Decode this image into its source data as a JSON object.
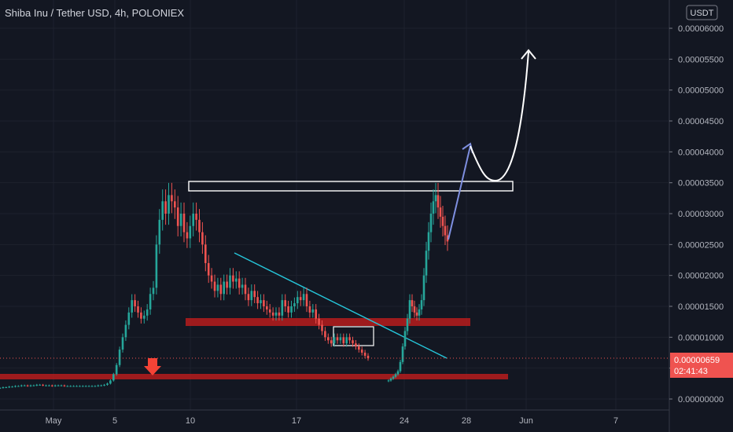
{
  "chart_data": {
    "type": "candlestick",
    "title": "Shiba Inu / Tether USD, 4h, POLONIEX",
    "currency": "USDT",
    "y_ticks": [
      "0.00006000",
      "0.00005500",
      "0.00005000",
      "0.00004500",
      "0.00004000",
      "0.00003500",
      "0.00003000",
      "0.00002500",
      "0.00002000",
      "0.00001500",
      "0.00001000",
      "0.00000500",
      "0.00000000"
    ],
    "ylim": [
      0,
      6.2e-05
    ],
    "x_ticks": [
      "May",
      "5",
      "10",
      "17",
      "24",
      "28",
      "Jun",
      "7"
    ],
    "last_price": "0.00000659",
    "countdown": "02:41:43",
    "colors": {
      "up": "#26a69a",
      "down": "#ef5350",
      "trend": "#26c6da",
      "zone": "#b71c1c",
      "arrow": "#7e8fe0"
    },
    "series": [
      {
        "name": "",
        "values": [
          1.8e-06,
          1.9e-06,
          1.9e-06,
          2e-06,
          2e-06,
          2.1e-06,
          2.1e-06,
          2.2e-06,
          2.2e-06,
          2.1e-06,
          2.2e-06,
          2.2e-06,
          2.3e-06,
          2.3e-06,
          2.2e-06,
          2.2e-06,
          2.2e-06,
          2.1e-06,
          2.2e-06,
          2.2e-06,
          2.2e-06,
          2.1e-06,
          2.1e-06,
          2.1e-06,
          2.1e-06,
          2.1e-06,
          2.1e-06,
          2.1e-06,
          2.1e-06,
          2.1e-06,
          2.1e-06,
          2.1e-06,
          2.2e-06,
          2.2e-06,
          2.3e-06,
          2.5e-06,
          3e-06,
          4e-06,
          5.5e-06,
          8e-06,
          1e-05,
          1.2e-05,
          1.4e-05,
          1.6e-05,
          1.5e-05,
          1.4e-05,
          1.3e-05,
          1.35e-05,
          1.45e-05,
          1.7e-05,
          1.8e-05,
          2.5e-05,
          2.9e-05,
          3.2e-05,
          3e-05,
          3.3e-05,
          3.2e-05,
          3.1e-05,
          2.8e-05,
          3e-05,
          2.7e-05,
          2.6e-05,
          2.8e-05,
          3e-05,
          2.9e-05,
          2.7e-05,
          2.5e-05,
          2.2e-05,
          2e-05,
          1.9e-05,
          1.75e-05,
          1.85e-05,
          1.7e-05,
          1.9e-05,
          1.8e-05,
          2e-05,
          1.9e-05,
          1.95e-05,
          1.8e-05,
          1.85e-05,
          1.7e-05,
          1.6e-05,
          1.75e-05,
          1.65e-05,
          1.55e-05,
          1.6e-05,
          1.5e-05,
          1.45e-05,
          1.4e-05,
          1.35e-05,
          1.4e-05,
          1.35e-05,
          1.6e-05,
          1.5e-05,
          1.4e-05,
          1.5e-05,
          1.55e-05,
          1.65e-05,
          1.6e-05,
          1.7e-05,
          1.5e-05,
          1.4e-05,
          1.45e-05,
          1.3e-05,
          1.2e-05,
          1.1e-05,
          1e-05,
          9.5e-06,
          9e-06,
          1e-05,
          9.5e-06,
          1e-05,
          9e-06,
          1e-05,
          9.5e-06,
          9e-06,
          8.5e-06,
          8e-06,
          7.5e-06,
          7e-06,
          6.6e-06
        ]
      },
      {
        "name": "",
        "values": [
          3e-06,
          3.3e-06,
          3.6e-06,
          4e-06,
          4.5e-06,
          6e-06,
          8.5e-06,
          1.1e-05,
          1.3e-05,
          1.6e-05,
          1.5e-05,
          1.4e-05,
          1.35e-05,
          1.45e-05,
          1.6e-05,
          2e-05,
          2.4e-05,
          2.7e-05,
          3e-05,
          3.2e-05,
          3.3e-05,
          3.1e-05,
          2.95e-05,
          2.8e-05,
          2.65e-05,
          2.55e-05
        ]
      }
    ]
  }
}
